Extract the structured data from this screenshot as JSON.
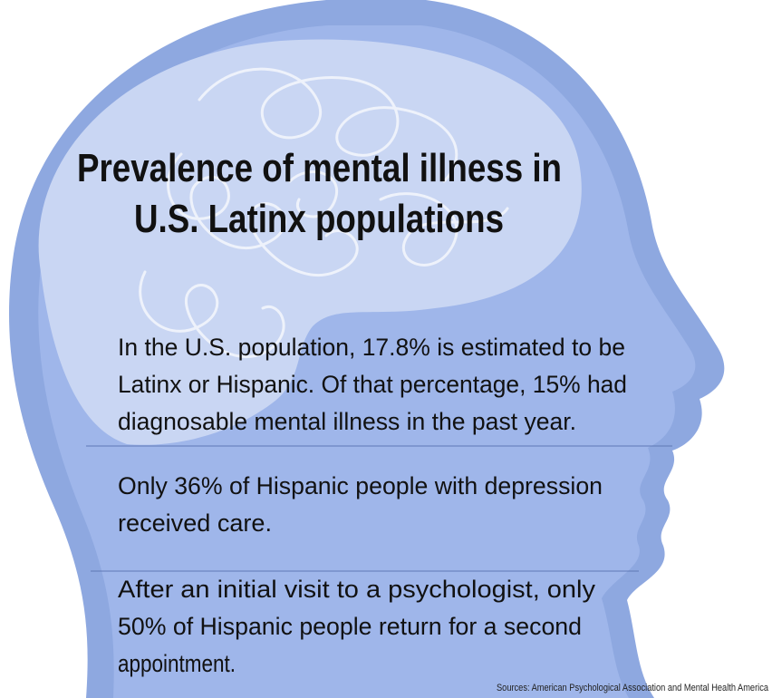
{
  "title": {
    "lines": [
      "Prevalence of mental illness in",
      "U.S. Latinx populations"
    ]
  },
  "facts": [
    {
      "lines": [
        "In the U.S. population, 17.8% is estimated to be",
        "Latinx or Hispanic. Of that percentage, 15% had",
        "diagnosable mental illness in the past year."
      ]
    },
    {
      "lines": [
        "Only 36% of Hispanic people with depression",
        "received care."
      ]
    },
    {
      "lines": [
        "After an initial visit to a psychologist, only",
        "50% of Hispanic people return for a second",
        "appointment."
      ]
    }
  ],
  "source": "Sources: American Psychological Association and Mental Health America"
}
